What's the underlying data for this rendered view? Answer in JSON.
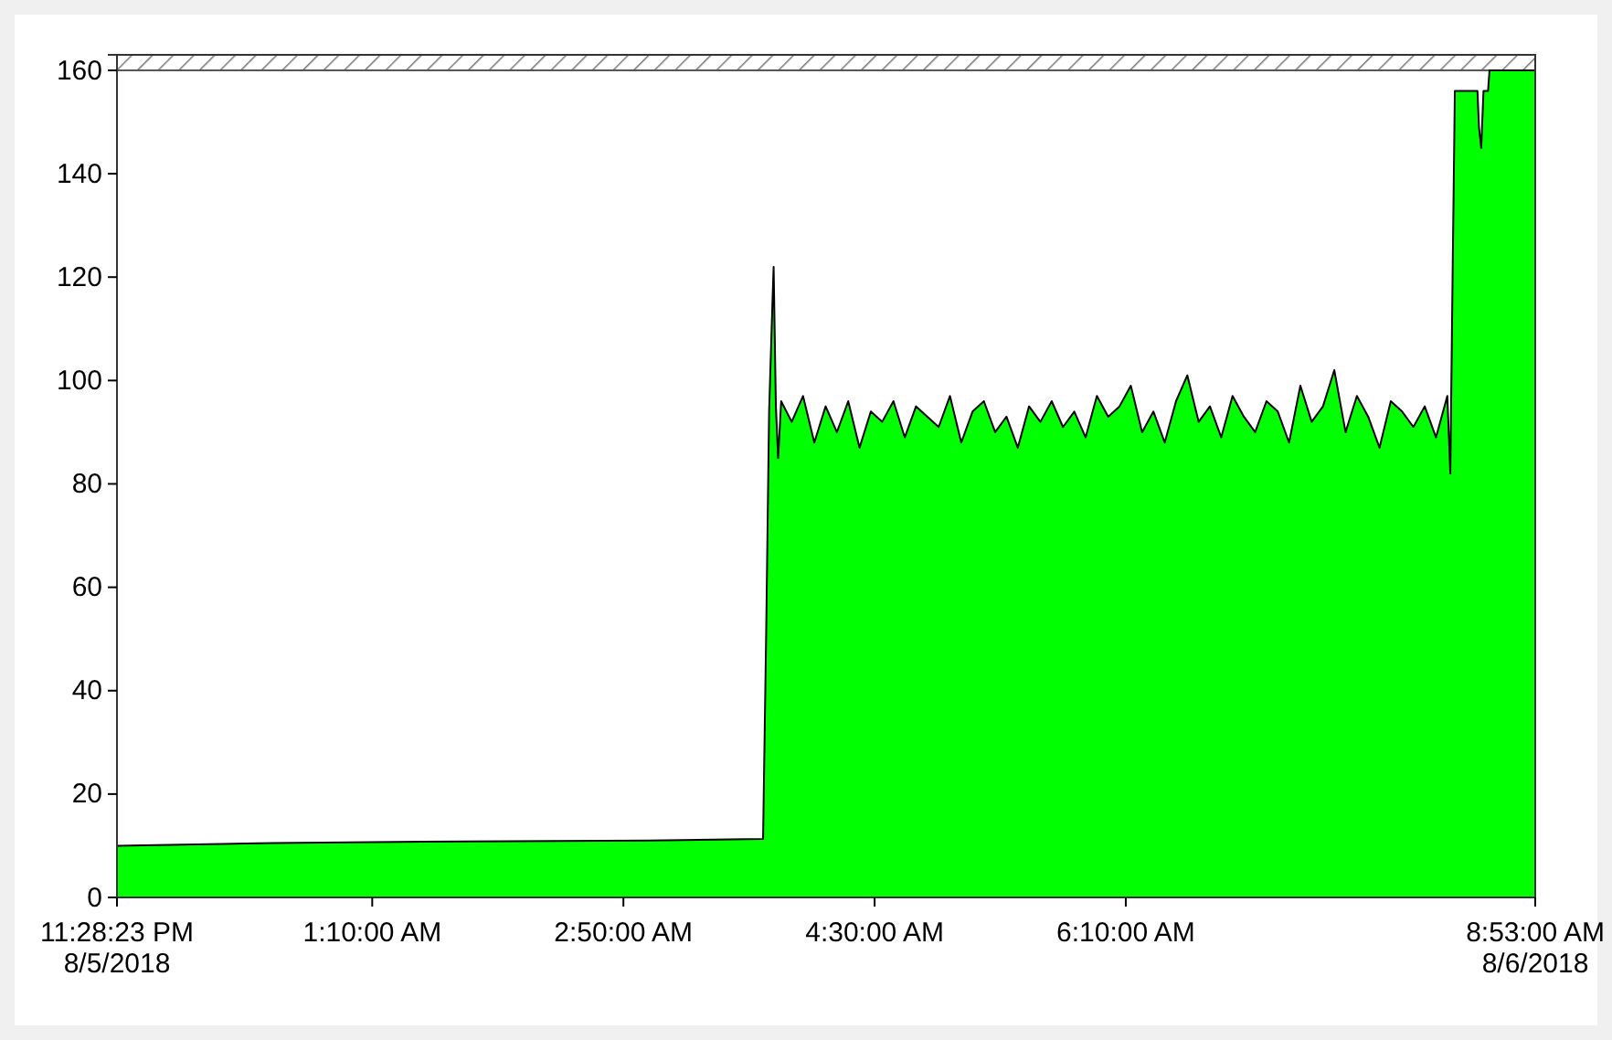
{
  "chart_data": {
    "type": "area",
    "x": [
      "2018-08-05T23:28:23",
      "2018-08-06T00:30",
      "2018-08-06T01:30",
      "2018-08-06T03:00",
      "2018-08-06T03:45:36",
      "2018-08-06T03:46:48",
      "2018-08-06T03:48:00",
      "2018-08-06T03:49:12",
      "2018-08-06T03:49:48",
      "2018-08-06T03:50:42",
      "2018-08-06T03:51:36",
      "2018-08-06T03:52:48",
      "2018-08-06T03:57:00",
      "2018-08-06T04:01:30",
      "2018-08-06T04:06:00",
      "2018-08-06T04:10:30",
      "2018-08-06T04:15:00",
      "2018-08-06T04:19:30",
      "2018-08-06T04:24:00",
      "2018-08-06T04:28:30",
      "2018-08-06T04:33:00",
      "2018-08-06T04:37:30",
      "2018-08-06T04:42:00",
      "2018-08-06T04:46:30",
      "2018-08-06T04:51:00",
      "2018-08-06T04:55:30",
      "2018-08-06T05:00:00",
      "2018-08-06T05:04:30",
      "2018-08-06T05:09:00",
      "2018-08-06T05:13:30",
      "2018-08-06T05:18:00",
      "2018-08-06T05:22:30",
      "2018-08-06T05:27:00",
      "2018-08-06T05:31:30",
      "2018-08-06T05:36:00",
      "2018-08-06T05:40:30",
      "2018-08-06T05:45:00",
      "2018-08-06T05:49:30",
      "2018-08-06T05:54:00",
      "2018-08-06T05:58:30",
      "2018-08-06T06:03:00",
      "2018-08-06T06:07:30",
      "2018-08-06T06:12:00",
      "2018-08-06T06:16:30",
      "2018-08-06T06:21:00",
      "2018-08-06T06:25:30",
      "2018-08-06T06:30:00",
      "2018-08-06T06:34:30",
      "2018-08-06T06:39:00",
      "2018-08-06T06:43:30",
      "2018-08-06T06:48:00",
      "2018-08-06T06:52:30",
      "2018-08-06T06:57:00",
      "2018-08-06T07:01:30",
      "2018-08-06T07:06:00",
      "2018-08-06T07:10:30",
      "2018-08-06T07:15:00",
      "2018-08-06T07:19:30",
      "2018-08-06T07:24:00",
      "2018-08-06T07:28:30",
      "2018-08-06T07:33:00",
      "2018-08-06T07:37:30",
      "2018-08-06T07:42:00",
      "2018-08-06T07:46:30",
      "2018-08-06T07:51:00",
      "2018-08-06T07:55:30",
      "2018-08-06T08:00:00",
      "2018-08-06T08:04:30",
      "2018-08-06T08:09:00",
      "2018-08-06T08:13:30",
      "2018-08-06T08:18:00",
      "2018-08-06T08:19:12",
      "2018-08-06T08:20:06",
      "2018-08-06T08:21:00",
      "2018-08-06T08:30:00",
      "2018-08-06T08:30:36",
      "2018-08-06T08:31:30",
      "2018-08-06T08:32:24",
      "2018-08-06T08:34:12",
      "2018-08-06T08:34:48",
      "2018-08-06T08:53"
    ],
    "series": [
      {
        "color": "#00ff00",
        "values": [
          10,
          10.5,
          10.8,
          11,
          11.3,
          50,
          94,
          113,
          122,
          95,
          85,
          96,
          92,
          97,
          88,
          95,
          90,
          96,
          87,
          94,
          92,
          96,
          89,
          95,
          93,
          91,
          97,
          88,
          94,
          96,
          90,
          93,
          87,
          95,
          92,
          96,
          91,
          94,
          89,
          97,
          93,
          95,
          99,
          90,
          94,
          88,
          96,
          101,
          92,
          95,
          89,
          97,
          93,
          90,
          96,
          94,
          88,
          99,
          92,
          95,
          102,
          90,
          97,
          93,
          87,
          96,
          94,
          91,
          95,
          89,
          97,
          82,
          120,
          156,
          156,
          149,
          145,
          156,
          156,
          160,
          160
        ]
      }
    ],
    "xlim": [
      "2018-08-05T23:28:23",
      "2018-08-06T08:53"
    ],
    "xticks": [
      {
        "value": "2018-08-05T23:28:23",
        "label": "11:28:23 PM\n8/5/2018"
      },
      {
        "value": "2018-08-06T01:10",
        "label": "1:10:00 AM"
      },
      {
        "value": "2018-08-06T02:50",
        "label": "2:50:00 AM"
      },
      {
        "value": "2018-08-06T04:30",
        "label": "4:30:00 AM"
      },
      {
        "value": "2018-08-06T06:10",
        "label": "6:10:00 AM"
      },
      {
        "value": "2018-08-06T08:53",
        "label": "8:53:00 AM\n8/6/2018"
      }
    ],
    "ylim": [
      0,
      163
    ],
    "yticks": [
      0,
      20,
      40,
      60,
      80,
      100,
      120,
      140,
      160
    ],
    "bands": [
      {
        "axis": "y",
        "from": 160,
        "to": 163
      }
    ],
    "grid": false
  }
}
